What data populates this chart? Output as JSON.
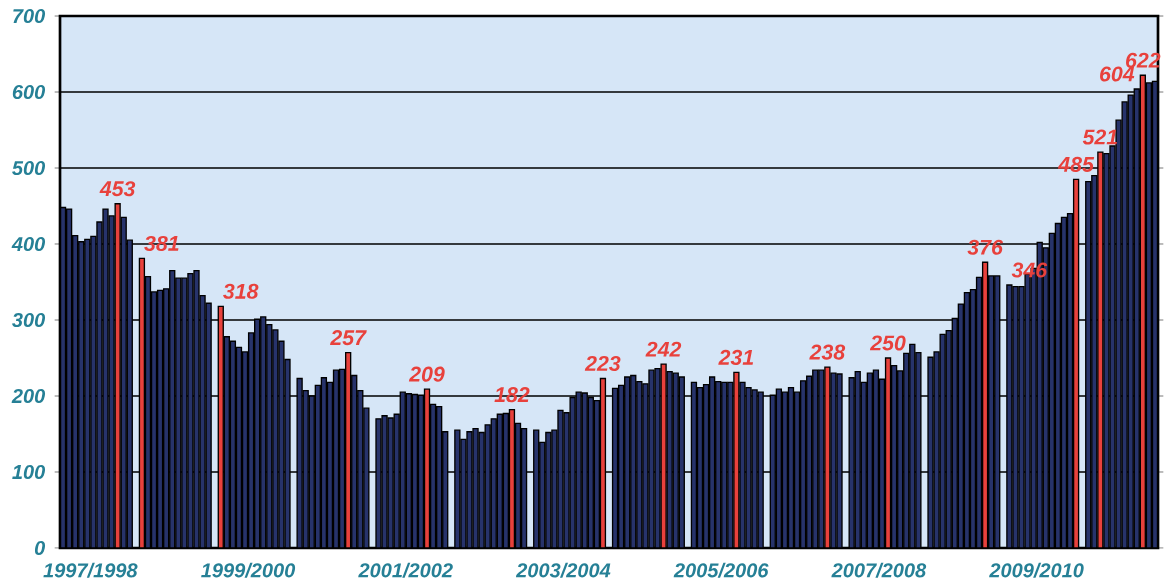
{
  "chart_data": {
    "type": "bar",
    "categories": [
      null,
      null,
      null,
      null,
      null,
      "1997/1998",
      null,
      null,
      null,
      null,
      null,
      null,
      null,
      null,
      null,
      null,
      null,
      null,
      null,
      null,
      null,
      null,
      null,
      null,
      null,
      null,
      null,
      null,
      null,
      null,
      null,
      "1999/2000",
      null,
      null,
      null,
      null,
      null,
      null,
      null,
      null,
      null,
      null,
      null,
      null,
      null,
      null,
      null,
      null,
      null,
      null,
      null,
      null,
      null,
      null,
      null,
      null,
      null,
      "2001/2002",
      null,
      null,
      null,
      null,
      null,
      null,
      null,
      null,
      null,
      null,
      null,
      null,
      null,
      null,
      null,
      null,
      null,
      null,
      null,
      null,
      null,
      null,
      null,
      null,
      null,
      "2003/2004",
      null,
      null,
      null,
      null,
      null,
      null,
      null,
      null,
      null,
      null,
      null,
      null,
      null,
      null,
      null,
      null,
      null,
      null,
      null,
      null,
      null,
      null,
      null,
      null,
      null,
      "2005/2006",
      null,
      null,
      null,
      null,
      null,
      null,
      null,
      null,
      null,
      null,
      null,
      null,
      null,
      null,
      null,
      null,
      null,
      null,
      null,
      null,
      null,
      null,
      null,
      null,
      null,
      "2007/2008",
      null,
      null,
      null,
      null,
      null,
      null,
      null,
      null,
      null,
      null,
      null,
      null,
      null,
      null,
      null,
      null,
      null,
      null,
      null,
      null,
      null,
      null,
      null,
      null,
      null,
      "2009/2010",
      null,
      null,
      null,
      null,
      null,
      null,
      null,
      null,
      null,
      null,
      null,
      null,
      null,
      null,
      null,
      null,
      null,
      null,
      null
    ],
    "values": [
      448,
      446,
      411,
      403,
      406,
      410,
      429,
      446,
      437,
      453,
      435,
      405,
      null,
      381,
      357,
      337,
      339,
      341,
      365,
      355,
      355,
      361,
      365,
      332,
      322,
      null,
      318,
      278,
      272,
      264,
      258,
      283,
      301,
      304,
      294,
      287,
      272,
      248,
      null,
      223,
      207,
      200,
      214,
      224,
      218,
      234,
      235,
      257,
      227,
      207,
      184,
      null,
      170,
      174,
      171,
      176,
      205,
      203,
      202,
      201,
      209,
      189,
      186,
      153,
      null,
      155,
      143,
      153,
      157,
      152,
      162,
      170,
      176,
      177,
      182,
      164,
      157,
      null,
      155,
      139,
      152,
      155,
      181,
      178,
      198,
      205,
      204,
      198,
      194,
      223,
      null,
      210,
      214,
      225,
      227,
      219,
      216,
      234,
      236,
      242,
      232,
      230,
      225,
      null,
      218,
      211,
      215,
      225,
      219,
      218,
      218,
      231,
      218,
      211,
      208,
      205,
      null,
      201,
      209,
      205,
      211,
      205,
      220,
      226,
      234,
      234,
      238,
      230,
      229,
      null,
      224,
      232,
      218,
      230,
      234,
      222,
      250,
      240,
      233,
      256,
      268,
      257,
      null,
      251,
      258,
      281,
      286,
      302,
      321,
      336,
      340,
      356,
      376,
      358,
      358,
      null,
      346,
      344,
      344,
      360,
      368,
      402,
      395,
      414,
      427,
      435,
      440,
      485,
      null,
      482,
      490,
      521,
      519,
      529,
      563,
      587,
      596,
      604,
      622,
      612,
      614
    ],
    "colors": [
      "#27336b",
      "#27336b",
      "#27336b",
      "#27336b",
      "#27336b",
      "#27336b",
      "#27336b",
      "#27336b",
      "#27336b",
      "#e8413c",
      "#27336b",
      "#27336b",
      null,
      "#e8413c",
      "#27336b",
      "#27336b",
      "#27336b",
      "#27336b",
      "#27336b",
      "#27336b",
      "#27336b",
      "#27336b",
      "#27336b",
      "#27336b",
      "#27336b",
      null,
      "#e8413c",
      "#27336b",
      "#27336b",
      "#27336b",
      "#27336b",
      "#27336b",
      "#27336b",
      "#27336b",
      "#27336b",
      "#27336b",
      "#27336b",
      "#27336b",
      null,
      "#27336b",
      "#27336b",
      "#27336b",
      "#27336b",
      "#27336b",
      "#27336b",
      "#27336b",
      "#27336b",
      "#e8413c",
      "#27336b",
      "#27336b",
      "#27336b",
      null,
      "#27336b",
      "#27336b",
      "#27336b",
      "#27336b",
      "#27336b",
      "#27336b",
      "#27336b",
      "#27336b",
      "#e8413c",
      "#27336b",
      "#27336b",
      "#27336b",
      null,
      "#27336b",
      "#27336b",
      "#27336b",
      "#27336b",
      "#27336b",
      "#27336b",
      "#27336b",
      "#27336b",
      "#27336b",
      "#e8413c",
      "#27336b",
      "#27336b",
      null,
      "#27336b",
      "#27336b",
      "#27336b",
      "#27336b",
      "#27336b",
      "#27336b",
      "#27336b",
      "#27336b",
      "#27336b",
      "#27336b",
      "#27336b",
      "#e8413c",
      null,
      "#27336b",
      "#27336b",
      "#27336b",
      "#27336b",
      "#27336b",
      "#27336b",
      "#27336b",
      "#27336b",
      "#e8413c",
      "#27336b",
      "#27336b",
      "#27336b",
      null,
      "#27336b",
      "#27336b",
      "#27336b",
      "#27336b",
      "#27336b",
      "#27336b",
      "#27336b",
      "#e8413c",
      "#27336b",
      "#27336b",
      "#27336b",
      "#27336b",
      null,
      "#27336b",
      "#27336b",
      "#27336b",
      "#27336b",
      "#27336b",
      "#27336b",
      "#27336b",
      "#27336b",
      "#27336b",
      "#e8413c",
      "#27336b",
      "#27336b",
      null,
      "#27336b",
      "#27336b",
      "#27336b",
      "#27336b",
      "#27336b",
      "#27336b",
      "#e8413c",
      "#27336b",
      "#27336b",
      "#27336b",
      "#27336b",
      "#27336b",
      null,
      "#27336b",
      "#27336b",
      "#27336b",
      "#27336b",
      "#27336b",
      "#27336b",
      "#27336b",
      "#27336b",
      "#27336b",
      "#e8413c",
      "#27336b",
      "#27336b",
      null,
      "#27336b",
      "#27336b",
      "#27336b",
      "#27336b",
      "#27336b",
      "#27336b",
      "#27336b",
      "#27336b",
      "#27336b",
      "#27336b",
      "#27336b",
      "#e8413c",
      null,
      "#27336b",
      "#27336b",
      "#e8413c",
      "#27336b",
      "#27336b",
      "#27336b",
      "#27336b",
      "#27336b",
      "#27336b",
      "#e8413c",
      "#27336b",
      "#27336b"
    ],
    "value_labels": [
      null,
      null,
      null,
      null,
      null,
      null,
      null,
      null,
      null,
      "453",
      null,
      null,
      null,
      "381",
      null,
      null,
      null,
      null,
      null,
      null,
      null,
      null,
      null,
      null,
      null,
      null,
      "318",
      null,
      null,
      null,
      null,
      null,
      null,
      null,
      null,
      null,
      null,
      null,
      null,
      null,
      null,
      null,
      null,
      null,
      null,
      null,
      null,
      "257",
      null,
      null,
      null,
      null,
      null,
      null,
      null,
      null,
      null,
      null,
      null,
      null,
      "209",
      null,
      null,
      null,
      null,
      null,
      null,
      null,
      null,
      null,
      null,
      null,
      null,
      null,
      "182",
      null,
      null,
      null,
      null,
      null,
      null,
      null,
      null,
      null,
      null,
      null,
      null,
      null,
      null,
      "223",
      null,
      null,
      null,
      null,
      null,
      null,
      null,
      null,
      null,
      "242",
      null,
      null,
      null,
      null,
      null,
      null,
      null,
      null,
      null,
      null,
      null,
      "231",
      null,
      null,
      null,
      null,
      null,
      null,
      null,
      null,
      null,
      null,
      null,
      null,
      null,
      null,
      "238",
      null,
      null,
      null,
      null,
      null,
      null,
      null,
      null,
      null,
      "250",
      null,
      null,
      null,
      null,
      null,
      null,
      null,
      null,
      null,
      null,
      null,
      null,
      null,
      null,
      null,
      "376",
      null,
      null,
      null,
      "346",
      null,
      null,
      null,
      null,
      null,
      null,
      null,
      null,
      null,
      null,
      "485",
      null,
      null,
      null,
      "521",
      null,
      null,
      null,
      null,
      null,
      "604",
      "622",
      null,
      null
    ],
    "ylim": [
      0,
      700
    ],
    "yticks": [
      0,
      100,
      200,
      300,
      400,
      500,
      600,
      700
    ],
    "grid": "y"
  }
}
